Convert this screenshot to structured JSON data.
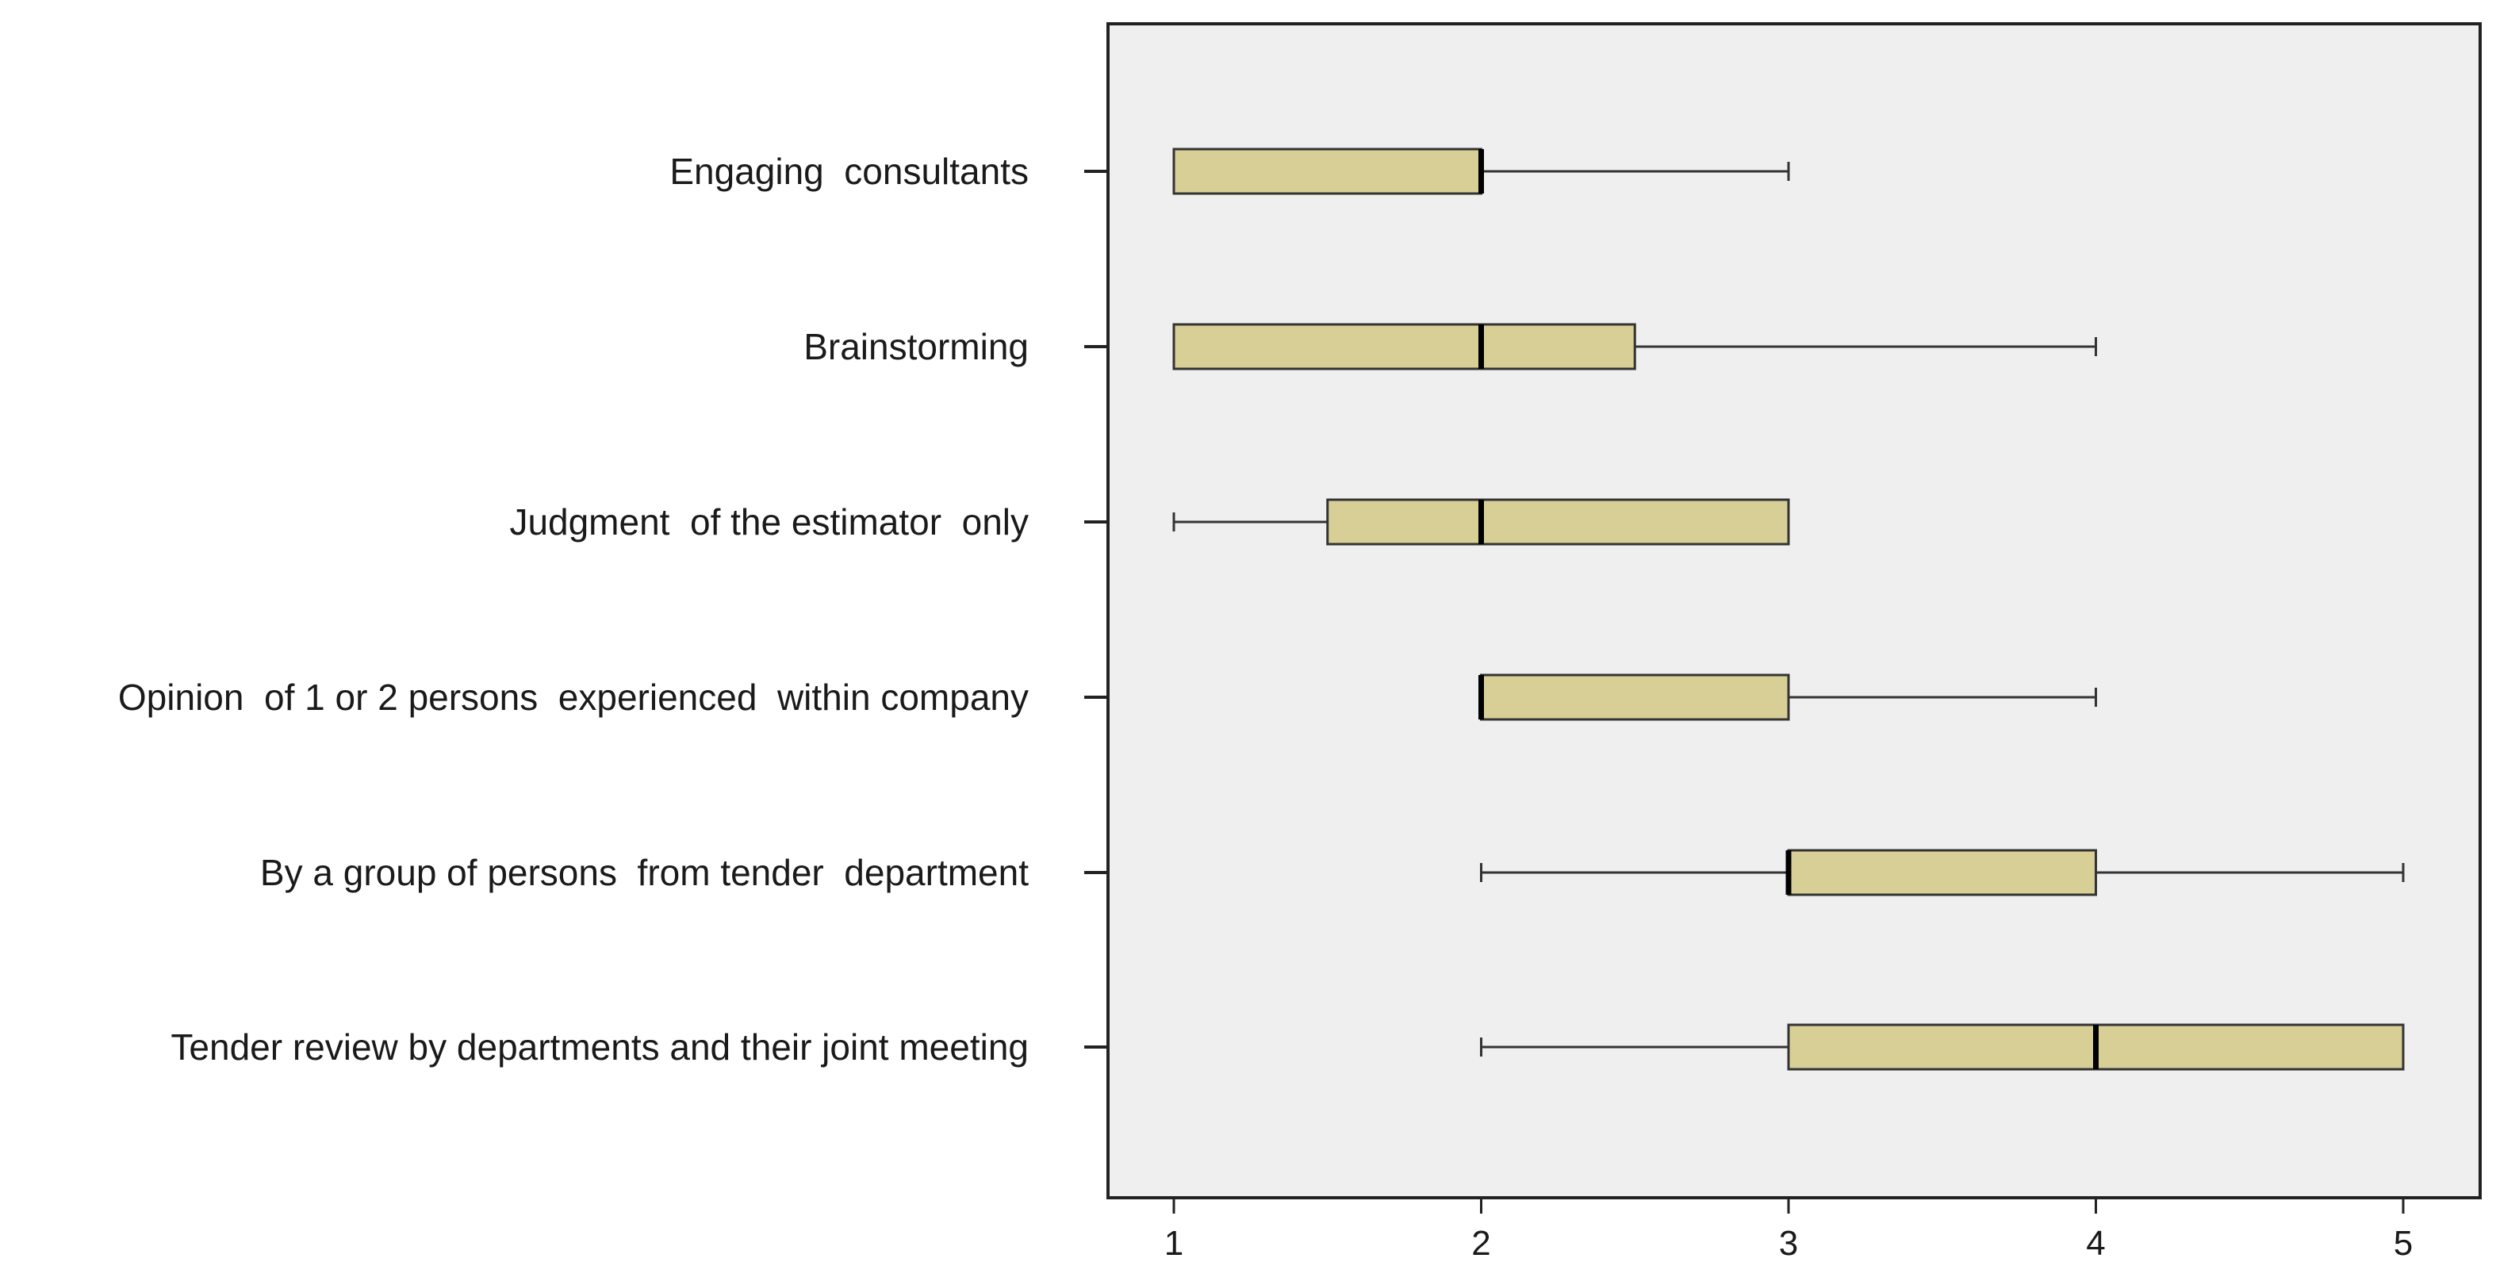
{
  "chart_data": {
    "type": "boxplot",
    "orientation": "horizontal",
    "title": "",
    "xlabel": "",
    "ylabel": "",
    "xlim": [
      1,
      5
    ],
    "x_ticks": [
      "1",
      "2",
      "3",
      "4",
      "5"
    ],
    "grid": false,
    "plot_background": "#efefef",
    "box_fill": "#d8cf96",
    "categories": [
      {
        "label": "Engaging  consultants",
        "whisker_low": 1,
        "q1": 1,
        "median": 2,
        "q3": 2,
        "whisker_high": 3
      },
      {
        "label": "Brainstorming",
        "whisker_low": 1,
        "q1": 1,
        "median": 2,
        "q3": 2.5,
        "whisker_high": 4
      },
      {
        "label": "Judgment  of the estimator  only",
        "whisker_low": 1,
        "q1": 1.5,
        "median": 2,
        "q3": 3,
        "whisker_high": 3
      },
      {
        "label": "Opinion  of 1 or 2 persons  experienced  within company",
        "whisker_low": 2,
        "q1": 2,
        "median": 2,
        "q3": 3,
        "whisker_high": 4
      },
      {
        "label": "By a group of persons  from tender  department",
        "whisker_low": 2,
        "q1": 3,
        "median": 3,
        "q3": 4,
        "whisker_high": 5
      },
      {
        "label": "Tender review by departments and their joint meeting",
        "whisker_low": 2,
        "q1": 3,
        "median": 4,
        "q3": 5,
        "whisker_high": 5
      }
    ]
  }
}
